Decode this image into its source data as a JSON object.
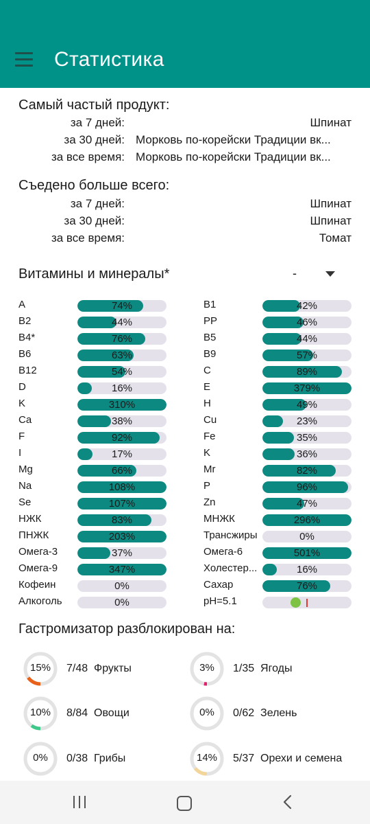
{
  "app": {
    "title": "Статистика"
  },
  "frequent": {
    "title": "Самый частый продукт:",
    "rows": [
      {
        "label": "за 7 дней:",
        "value": "Шпинат"
      },
      {
        "label": "за 30 дней:",
        "value": "Морковь по-корейски Традиции вк..."
      },
      {
        "label": "за все время:",
        "value": "Морковь по-корейски Традиции вк..."
      }
    ]
  },
  "eaten": {
    "title": "Съедено больше всего:",
    "rows": [
      {
        "label": "за 7 дней:",
        "value": "Шпинат"
      },
      {
        "label": "за 30 дней:",
        "value": "Шпинат"
      },
      {
        "label": "за все время:",
        "value": "Томат"
      }
    ]
  },
  "vitamins": {
    "title": "Витамины и минералы*",
    "selector_value": "-",
    "left": [
      {
        "name": "A",
        "pct": "74%",
        "fill": 0.74
      },
      {
        "name": "B2",
        "pct": "44%",
        "fill": 0.44
      },
      {
        "name": "B4*",
        "pct": "76%",
        "fill": 0.76
      },
      {
        "name": "B6",
        "pct": "63%",
        "fill": 0.63
      },
      {
        "name": "B12",
        "pct": "54%",
        "fill": 0.54
      },
      {
        "name": "D",
        "pct": "16%",
        "fill": 0.16
      },
      {
        "name": "K",
        "pct": "310%",
        "fill": 1.0
      },
      {
        "name": "Ca",
        "pct": "38%",
        "fill": 0.38
      },
      {
        "name": "F",
        "pct": "92%",
        "fill": 0.92
      },
      {
        "name": "I",
        "pct": "17%",
        "fill": 0.17
      },
      {
        "name": "Mg",
        "pct": "66%",
        "fill": 0.66
      },
      {
        "name": "Na",
        "pct": "108%",
        "fill": 1.0
      },
      {
        "name": "Se",
        "pct": "107%",
        "fill": 1.0
      },
      {
        "name": "НЖК",
        "pct": "83%",
        "fill": 0.83
      },
      {
        "name": "ПНЖК",
        "pct": "203%",
        "fill": 1.0
      },
      {
        "name": "Омега-3",
        "pct": "37%",
        "fill": 0.37
      },
      {
        "name": "Омега-9",
        "pct": "347%",
        "fill": 1.0
      },
      {
        "name": "Кофеин",
        "pct": "0%",
        "fill": 0
      },
      {
        "name": "Алкоголь",
        "pct": "0%",
        "fill": 0
      }
    ],
    "right": [
      {
        "name": "B1",
        "pct": "42%",
        "fill": 0.42
      },
      {
        "name": "PP",
        "pct": "46%",
        "fill": 0.46
      },
      {
        "name": "B5",
        "pct": "44%",
        "fill": 0.44
      },
      {
        "name": "B9",
        "pct": "57%",
        "fill": 0.57
      },
      {
        "name": "C",
        "pct": "89%",
        "fill": 0.89
      },
      {
        "name": "E",
        "pct": "379%",
        "fill": 1.0
      },
      {
        "name": "H",
        "pct": "49%",
        "fill": 0.49
      },
      {
        "name": "Cu",
        "pct": "23%",
        "fill": 0.23
      },
      {
        "name": "Fe",
        "pct": "35%",
        "fill": 0.35
      },
      {
        "name": "K",
        "pct": "36%",
        "fill": 0.36
      },
      {
        "name": "Mr",
        "pct": "82%",
        "fill": 0.82
      },
      {
        "name": "P",
        "pct": "96%",
        "fill": 0.96
      },
      {
        "name": "Zn",
        "pct": "47%",
        "fill": 0.47
      },
      {
        "name": "МНЖК",
        "pct": "296%",
        "fill": 1.0
      },
      {
        "name": "Трансжиры",
        "pct": "0%",
        "fill": 0
      },
      {
        "name": "Омега-6",
        "pct": "501%",
        "fill": 1.0
      },
      {
        "name": "Холестер...",
        "pct": "16%",
        "fill": 0.16
      },
      {
        "name": "Сахар",
        "pct": "76%",
        "fill": 0.76
      }
    ],
    "ph": {
      "name": "pH=5.1"
    }
  },
  "gastro": {
    "title": "Гастромизатор разблокирован на:",
    "items": [
      {
        "pct": "15%",
        "count": "7/48",
        "name": "Фрукты",
        "fraction": 0.15,
        "color": "#e8621c"
      },
      {
        "pct": "3%",
        "count": "1/35",
        "name": "Ягоды",
        "fraction": 0.03,
        "color": "#e0206f"
      },
      {
        "pct": "10%",
        "count": "8/84",
        "name": "Овощи",
        "fraction": 0.1,
        "color": "#3ec98a"
      },
      {
        "pct": "0%",
        "count": "0/62",
        "name": "Зелень",
        "fraction": 0,
        "color": "#4caf50"
      },
      {
        "pct": "0%",
        "count": "0/38",
        "name": "Грибы",
        "fraction": 0,
        "color": "#a08060"
      },
      {
        "pct": "14%",
        "count": "5/37",
        "name": "Орехи и семена",
        "fraction": 0.14,
        "color": "#f3d59a"
      }
    ]
  },
  "colors": {
    "primary": "#009288",
    "bar_fill": "#0c8a82",
    "bar_track": "#e4e1ea"
  }
}
